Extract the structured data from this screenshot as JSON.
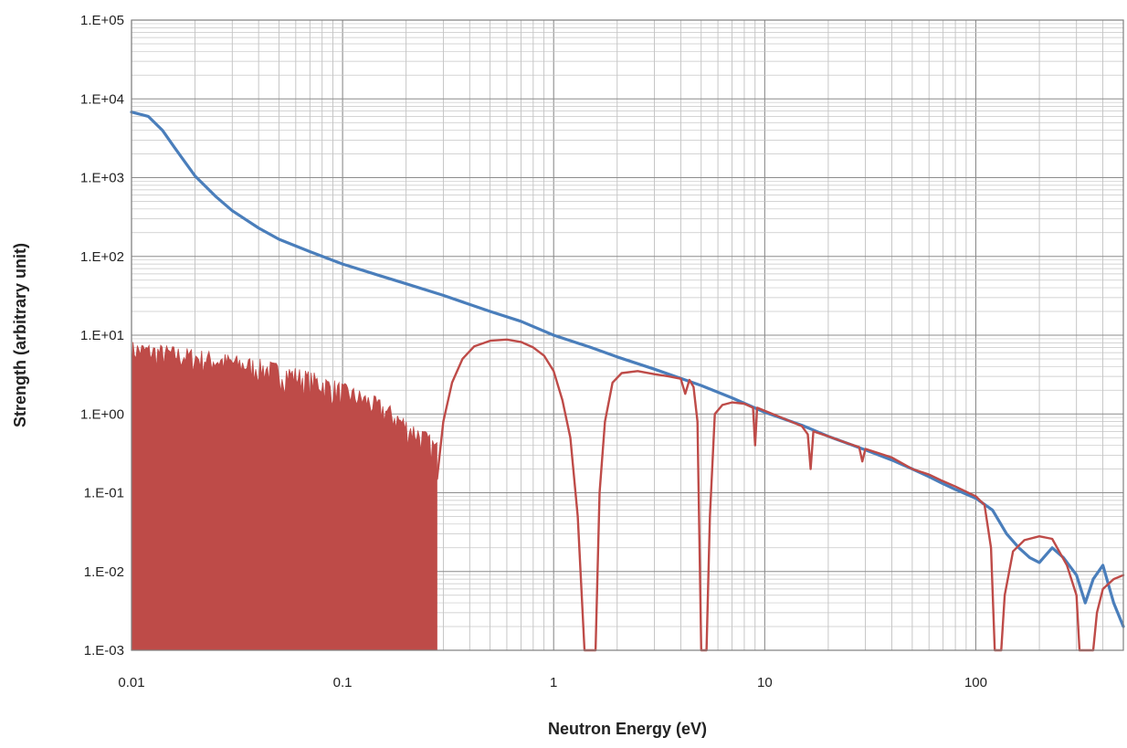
{
  "chart_data": {
    "type": "line",
    "title": "",
    "xlabel": "Neutron Energy (eV)",
    "ylabel": "Strength (arbitrary unit)",
    "x_scale": "log",
    "y_scale": "log",
    "xlim": [
      0.01,
      500
    ],
    "ylim": [
      0.001,
      100000
    ],
    "x_tick_labels": [
      "0.01",
      "0.1",
      "1",
      "10",
      "100"
    ],
    "x_tick_values": [
      0.01,
      0.1,
      1,
      10,
      100
    ],
    "y_tick_labels": [
      "1.E-03",
      "1.E-02",
      "1.E-01",
      "1.E+00",
      "1.E+01",
      "1.E+02",
      "1.E+03",
      "1.E+04",
      "1.E+05"
    ],
    "y_tick_values": [
      0.001,
      0.01,
      0.1,
      1,
      10,
      100,
      1000,
      10000,
      100000
    ],
    "grid": true,
    "minor_grid": true,
    "legend": "none",
    "series": [
      {
        "color": "#4a7ebb",
        "points": [
          [
            0.01,
            6800
          ],
          [
            0.012,
            6000
          ],
          [
            0.014,
            4000
          ],
          [
            0.016,
            2400
          ],
          [
            0.018,
            1550
          ],
          [
            0.02,
            1050
          ],
          [
            0.025,
            580
          ],
          [
            0.03,
            380
          ],
          [
            0.04,
            230
          ],
          [
            0.05,
            165
          ],
          [
            0.07,
            115
          ],
          [
            0.1,
            80
          ],
          [
            0.15,
            57
          ],
          [
            0.2,
            45
          ],
          [
            0.3,
            32
          ],
          [
            0.5,
            20
          ],
          [
            0.7,
            15
          ],
          [
            1,
            10
          ],
          [
            1.5,
            7.0
          ],
          [
            2,
            5.3
          ],
          [
            3,
            3.7
          ],
          [
            5,
            2.3
          ],
          [
            7,
            1.6
          ],
          [
            10,
            1.05
          ],
          [
            15,
            0.72
          ],
          [
            20,
            0.52
          ],
          [
            30,
            0.35
          ],
          [
            40,
            0.26
          ],
          [
            50,
            0.2
          ],
          [
            60,
            0.16
          ],
          [
            70,
            0.13
          ],
          [
            80,
            0.11
          ],
          [
            100,
            0.085
          ],
          [
            120,
            0.06
          ],
          [
            140,
            0.03
          ],
          [
            160,
            0.02
          ],
          [
            180,
            0.015
          ],
          [
            200,
            0.013
          ],
          [
            230,
            0.02
          ],
          [
            260,
            0.015
          ],
          [
            300,
            0.009
          ],
          [
            330,
            0.004
          ],
          [
            360,
            0.008
          ],
          [
            400,
            0.012
          ],
          [
            450,
            0.004
          ],
          [
            500,
            0.002
          ]
        ]
      },
      {
        "color": "#be4b48",
        "fill_to_axis_below": 0.28,
        "noisy_band": [
          [
            0.01,
            8.5,
            3.5
          ],
          [
            0.05,
            4.5,
            1.8
          ],
          [
            0.1,
            2.5,
            1.0
          ],
          [
            0.2,
            0.9,
            0.35
          ],
          [
            0.28,
            0.45,
            0.18
          ]
        ],
        "points": [
          [
            0.28,
            0.15
          ],
          [
            0.3,
            0.8
          ],
          [
            0.33,
            2.5
          ],
          [
            0.37,
            5.0
          ],
          [
            0.42,
            7.2
          ],
          [
            0.5,
            8.5
          ],
          [
            0.6,
            8.8
          ],
          [
            0.7,
            8.2
          ],
          [
            0.8,
            7.0
          ],
          [
            0.9,
            5.5
          ],
          [
            1.0,
            3.5
          ],
          [
            1.1,
            1.5
          ],
          [
            1.2,
            0.5
          ],
          [
            1.3,
            0.05
          ],
          [
            1.4,
            0.001
          ],
          [
            1.5,
            0.001
          ],
          [
            1.58,
            0.001
          ],
          [
            1.65,
            0.1
          ],
          [
            1.75,
            0.8
          ],
          [
            1.9,
            2.5
          ],
          [
            2.1,
            3.3
          ],
          [
            2.5,
            3.5
          ],
          [
            3,
            3.2
          ],
          [
            3.5,
            3.0
          ],
          [
            4,
            2.8
          ],
          [
            4.2,
            1.8
          ],
          [
            4.4,
            2.7
          ],
          [
            4.6,
            2.2
          ],
          [
            4.8,
            0.8
          ],
          [
            5.0,
            0.001
          ],
          [
            5.3,
            0.001
          ],
          [
            5.5,
            0.05
          ],
          [
            5.8,
            1.0
          ],
          [
            6.3,
            1.3
          ],
          [
            7,
            1.4
          ],
          [
            8,
            1.35
          ],
          [
            8.8,
            1.2
          ],
          [
            9.0,
            0.4
          ],
          [
            9.2,
            1.2
          ],
          [
            10,
            1.1
          ],
          [
            12,
            0.9
          ],
          [
            15,
            0.7
          ],
          [
            16,
            0.55
          ],
          [
            16.5,
            0.2
          ],
          [
            17,
            0.6
          ],
          [
            20,
            0.52
          ],
          [
            25,
            0.42
          ],
          [
            28,
            0.38
          ],
          [
            29,
            0.25
          ],
          [
            30,
            0.36
          ],
          [
            40,
            0.28
          ],
          [
            50,
            0.2
          ],
          [
            60,
            0.17
          ],
          [
            70,
            0.14
          ],
          [
            80,
            0.12
          ],
          [
            100,
            0.09
          ],
          [
            110,
            0.07
          ],
          [
            118,
            0.02
          ],
          [
            123,
            0.001
          ],
          [
            132,
            0.001
          ],
          [
            137,
            0.005
          ],
          [
            150,
            0.018
          ],
          [
            170,
            0.025
          ],
          [
            200,
            0.028
          ],
          [
            230,
            0.026
          ],
          [
            270,
            0.012
          ],
          [
            300,
            0.005
          ],
          [
            310,
            0.001
          ],
          [
            360,
            0.001
          ],
          [
            375,
            0.003
          ],
          [
            400,
            0.006
          ],
          [
            450,
            0.008
          ],
          [
            500,
            0.009
          ]
        ]
      }
    ]
  }
}
